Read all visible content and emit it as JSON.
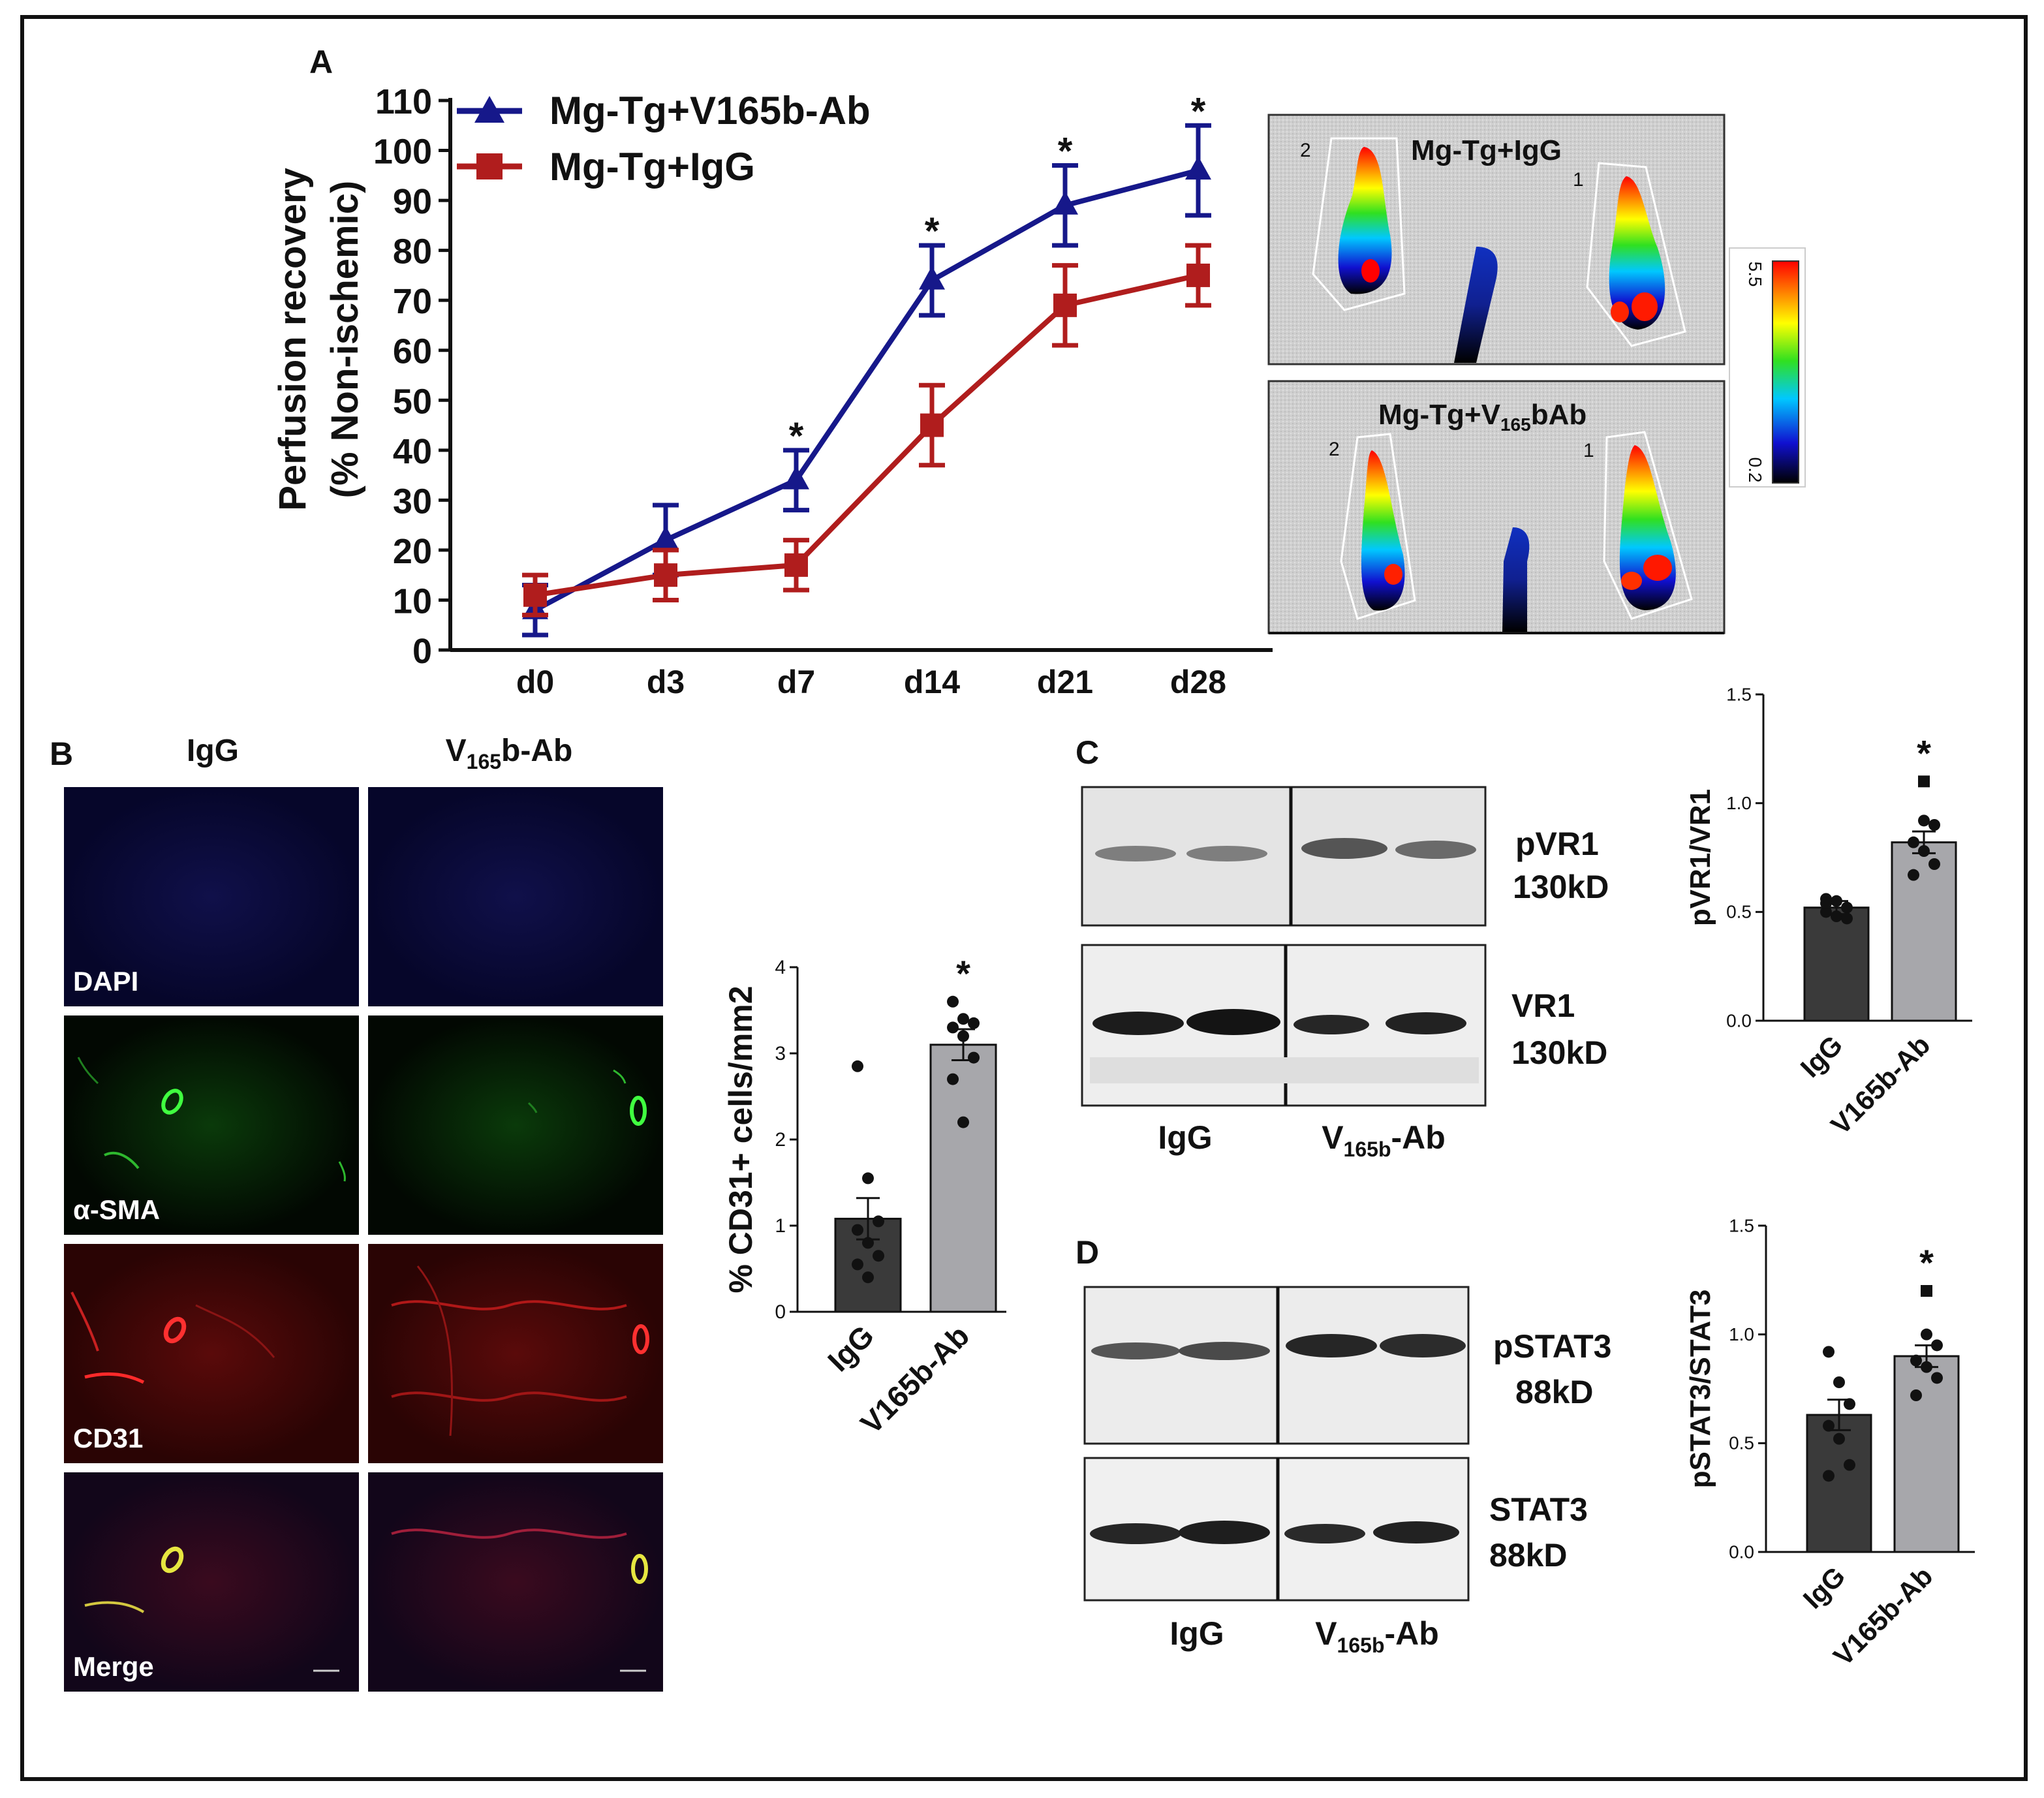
{
  "colors": {
    "blue": "#16188a",
    "red": "#b01d1d",
    "bar_dark": "#3a3a3a",
    "bar_light": "#a7a7ab"
  },
  "panel_labels": {
    "a": "A",
    "b": "B",
    "c": "C",
    "d": "D"
  },
  "sig_mark": "*",
  "image_a": {
    "title1": "Mg-Tg+IgG",
    "title2_main": "Mg-Tg+V",
    "title2_sub": "165",
    "title2_end": "bAb",
    "limb_left": "2",
    "limb_right": "1",
    "scale_max": "5.5",
    "scale_min": "0.2"
  },
  "panel_b": {
    "col1": "IgG",
    "col2_main": "V",
    "col2_sub": "165",
    "col2_end": "b-Ab",
    "row_labels": [
      "DAPI",
      "α-SMA",
      "CD31",
      "Merge"
    ]
  },
  "panel_c": {
    "band1_name": "pVR1",
    "band1_weight": "130kD",
    "band2_name": "VR1",
    "band2_weight": "130kD",
    "lane1": "IgG",
    "lane2_main": "V",
    "lane2_sub": "165b",
    "lane2_end": "-Ab"
  },
  "panel_d": {
    "band1_name": "pSTAT3",
    "band1_weight": "88kD",
    "band2_name": "STAT3",
    "band2_weight": "88kD",
    "lane1": "IgG",
    "lane2_main": "V",
    "lane2_sub": "165b",
    "lane2_end": "-Ab"
  },
  "chart_data": [
    {
      "id": "perfusion",
      "type": "line",
      "ylabel": "Perfusion recovery",
      "ylabel2": "(% Non-ischemic)",
      "categories": [
        "d0",
        "d3",
        "d7",
        "d14",
        "d21",
        "d28"
      ],
      "yticks": [
        "0",
        "10",
        "20",
        "30",
        "40",
        "50",
        "60",
        "70",
        "80",
        "90",
        "100",
        "110"
      ],
      "ylim": [
        0,
        110
      ],
      "series": [
        {
          "name": "Mg-Tg+V165b-Ab",
          "values": [
            8,
            22,
            34,
            74,
            89,
            96
          ],
          "err": [
            5,
            7,
            6,
            7,
            8,
            9
          ],
          "marker": "triangle"
        },
        {
          "name": "Mg-Tg+IgG",
          "values": [
            11,
            15,
            17,
            45,
            69,
            75
          ],
          "err": [
            4,
            5,
            5,
            8,
            8,
            6
          ],
          "marker": "square"
        }
      ],
      "significant": [
        "d7",
        "d14",
        "d21",
        "d28"
      ]
    },
    {
      "id": "cd31",
      "type": "bar",
      "ylabel": "% CD31+ cells/mm2",
      "categories": [
        "IgG",
        "V165b-Ab"
      ],
      "values": [
        1.08,
        3.1
      ],
      "sem": [
        0.24,
        0.18
      ],
      "yticks": [
        "0",
        "1",
        "2",
        "3",
        "4"
      ],
      "ylim": [
        0,
        4
      ],
      "points": [
        [
          2.85,
          1.55,
          1.05,
          0.95,
          0.8,
          0.65,
          0.55,
          0.4
        ],
        [
          3.6,
          3.4,
          3.35,
          3.3,
          3.2,
          2.95,
          2.7,
          2.2
        ]
      ],
      "significant": [
        "V165b-Ab"
      ]
    },
    {
      "id": "pvr1",
      "type": "bar",
      "ylabel": "pVR1/VR1",
      "categories": [
        "IgG",
        "V165b-Ab"
      ],
      "values": [
        0.52,
        0.82
      ],
      "sem": [
        0.03,
        0.05
      ],
      "yticks": [
        "0.0",
        "0.5",
        "1.0",
        "1.5"
      ],
      "ylim": [
        0,
        1.5
      ],
      "points": [
        [
          0.56,
          0.55,
          0.52,
          0.5,
          0.48,
          0.47,
          0.54
        ],
        [
          1.1,
          0.92,
          0.9,
          0.82,
          0.78,
          0.72,
          0.67
        ]
      ],
      "significant": [
        "V165b-Ab"
      ]
    },
    {
      "id": "pstat3",
      "type": "bar",
      "ylabel": "pSTAT3/STAT3",
      "categories": [
        "IgG",
        "V165b-Ab"
      ],
      "values": [
        0.63,
        0.9
      ],
      "sem": [
        0.07,
        0.05
      ],
      "yticks": [
        "0.0",
        "0.5",
        "1.0",
        "1.5"
      ],
      "ylim": [
        0,
        1.5
      ],
      "points": [
        [
          0.92,
          0.78,
          0.68,
          0.58,
          0.52,
          0.4,
          0.35
        ],
        [
          1.2,
          1.0,
          0.95,
          0.88,
          0.85,
          0.8,
          0.72
        ]
      ],
      "significant": [
        "V165b-Ab"
      ]
    }
  ]
}
